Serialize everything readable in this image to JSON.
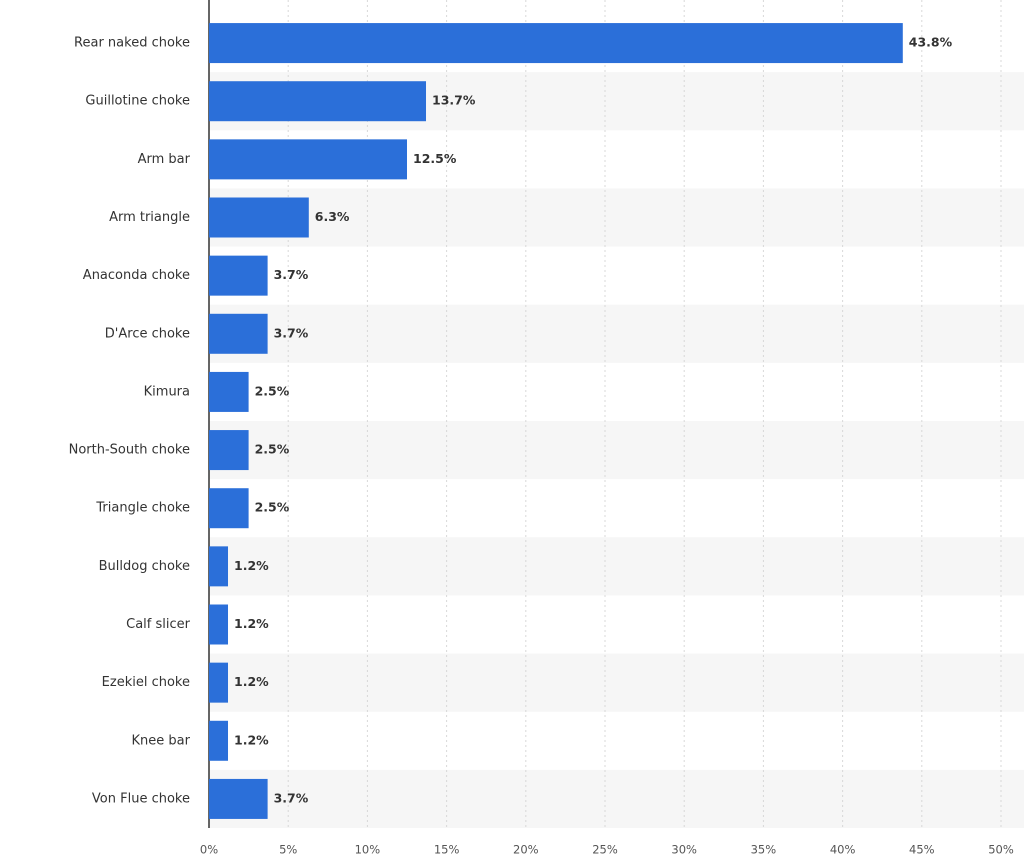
{
  "chart_data": {
    "type": "bar",
    "orientation": "horizontal",
    "categories": [
      "Rear naked choke",
      "Guillotine choke",
      "Arm bar",
      "Arm triangle",
      "Anaconda choke",
      "D'Arce choke",
      "Kimura",
      "North-South choke",
      "Triangle choke",
      "Bulldog choke",
      "Calf slicer",
      "Ezekiel choke",
      "Knee bar",
      "Von Flue choke"
    ],
    "values": [
      43.8,
      13.7,
      12.5,
      6.3,
      3.7,
      3.7,
      2.5,
      2.5,
      2.5,
      1.2,
      1.2,
      1.2,
      1.2,
      3.7
    ],
    "value_labels": [
      "43.8%",
      "13.7%",
      "12.5%",
      "6.3%",
      "3.7%",
      "3.7%",
      "2.5%",
      "2.5%",
      "2.5%",
      "1.2%",
      "1.2%",
      "1.2%",
      "1.2%",
      "3.7%"
    ],
    "color": "#2b6fd9",
    "xlim": [
      0,
      50
    ],
    "xticks": [
      {
        "value": 0,
        "label": "0%"
      },
      {
        "value": 5,
        "label": "5%"
      },
      {
        "value": 10,
        "label": "10%"
      },
      {
        "value": 15,
        "label": "15%"
      },
      {
        "value": 20,
        "label": "20%"
      },
      {
        "value": 25,
        "label": "25%"
      },
      {
        "value": 30,
        "label": "30%"
      },
      {
        "value": 35,
        "label": "35%"
      },
      {
        "value": 40,
        "label": "40%"
      },
      {
        "value": 45,
        "label": "45%"
      },
      {
        "value": 50,
        "label": "50%"
      }
    ],
    "grid": true
  }
}
